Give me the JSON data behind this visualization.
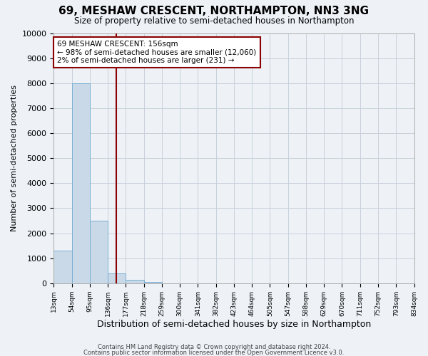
{
  "title": "69, MESHAW CRESCENT, NORTHAMPTON, NN3 3NG",
  "subtitle": "Size of property relative to semi-detached houses in Northampton",
  "xlabel": "Distribution of semi-detached houses by size in Northampton",
  "ylabel": "Number of semi-detached properties",
  "bin_labels": [
    "13sqm",
    "54sqm",
    "95sqm",
    "136sqm",
    "177sqm",
    "218sqm",
    "259sqm",
    "300sqm",
    "341sqm",
    "382sqm",
    "423sqm",
    "464sqm",
    "505sqm",
    "547sqm",
    "588sqm",
    "629sqm",
    "670sqm",
    "711sqm",
    "752sqm",
    "793sqm",
    "834sqm"
  ],
  "bar_heights": [
    1300,
    8000,
    2500,
    400,
    150,
    50,
    0,
    0,
    0,
    0,
    0,
    0,
    0,
    0,
    0,
    0,
    0,
    0,
    0,
    0
  ],
  "bar_color": "#c9d9e8",
  "bar_edge_color": "#7bafd4",
  "property_line_x": 3.48,
  "property_line_color": "#8b0000",
  "annotation_line1": "69 MESHAW CRESCENT: 156sqm",
  "annotation_line2": "← 98% of semi-detached houses are smaller (12,060)",
  "annotation_line3": "2% of semi-detached houses are larger (231) →",
  "annotation_box_color": "#ffffff",
  "annotation_box_edge_color": "#8b0000",
  "ylim": [
    0,
    10000
  ],
  "yticks": [
    0,
    1000,
    2000,
    3000,
    4000,
    5000,
    6000,
    7000,
    8000,
    9000,
    10000
  ],
  "footer_line1": "Contains HM Land Registry data © Crown copyright and database right 2024.",
  "footer_line2": "Contains public sector information licensed under the Open Government Licence v3.0.",
  "bg_color": "#eef2f7",
  "plot_bg_color": "#eef2f7",
  "grid_color": "#c8d0da"
}
